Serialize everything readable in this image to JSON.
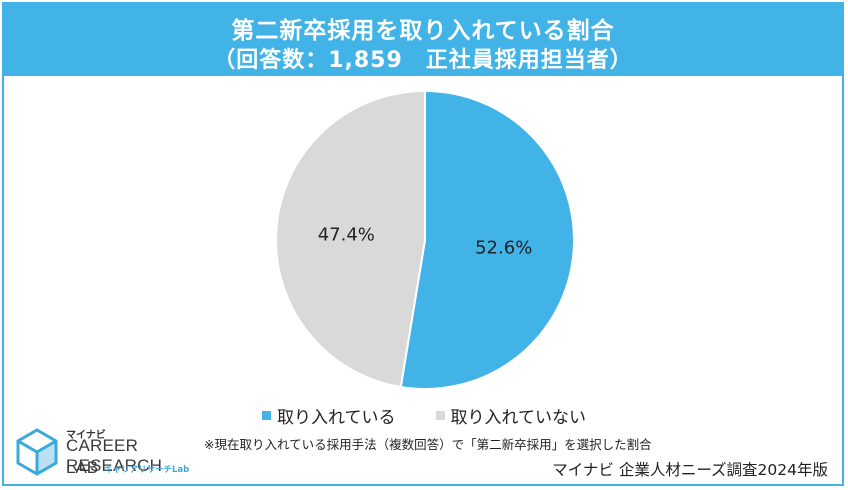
{
  "header": {
    "title_line1": "第二新卒採用を取り入れている割合",
    "title_line2": "（回答数：1,859　正社員採用担当者）"
  },
  "chart_data": {
    "type": "pie",
    "categories": [
      "取り入れている",
      "取り入れていない"
    ],
    "values": [
      52.6,
      47.4
    ],
    "labels": [
      "52.6%",
      "47.4%"
    ],
    "colors": [
      "#41b3e6",
      "#d9d9d9"
    ],
    "legend_position": "bottom"
  },
  "legend": {
    "items": [
      "取り入れている",
      "取り入れていない"
    ]
  },
  "footer": {
    "note": "※現在取り入れている採用手法（複数回答）で「第二新卒採用」を選択した割合",
    "source": "マイナビ 企業人材ニーズ調査2024年版"
  },
  "logo": {
    "brand": "マイナビ",
    "line1": "CAREER RESEARCH",
    "line2": "LAB",
    "sub": "キャリアリサーチLab"
  }
}
